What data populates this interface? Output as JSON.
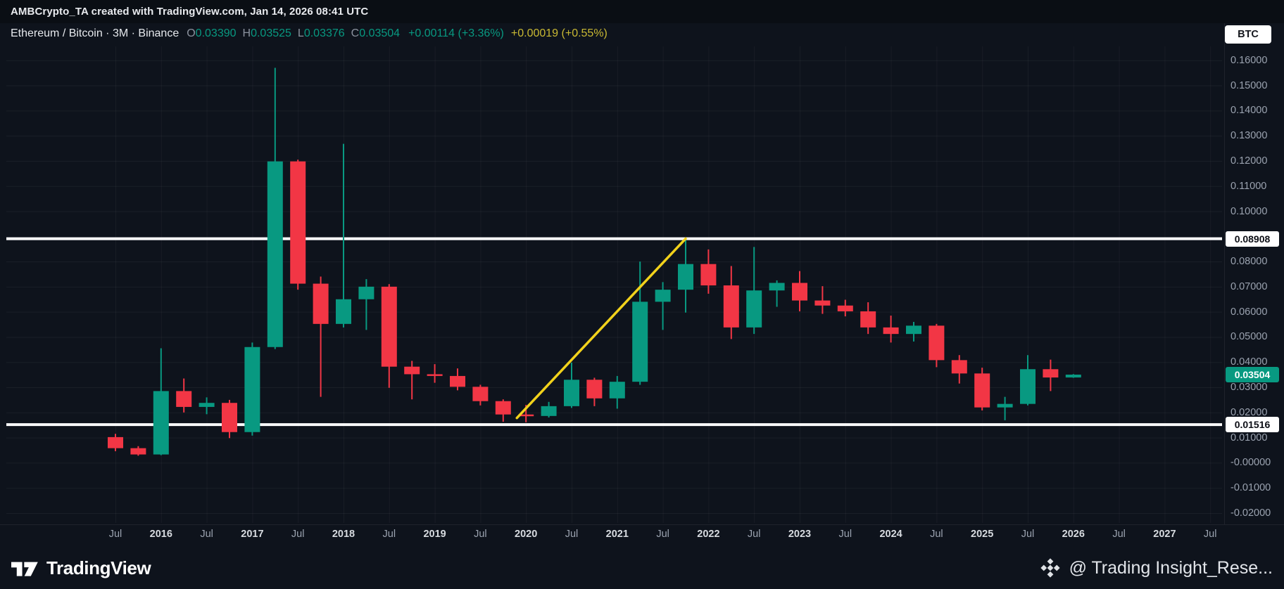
{
  "top_bar": {
    "text": "AMBCrypto_TA created with TradingView.com, Jan 14, 2026 08:41 UTC"
  },
  "legend": {
    "title": "Ethereum / Bitcoin · 3M · Binance",
    "ohlc": [
      {
        "label": "O",
        "value": "0.03390"
      },
      {
        "label": "H",
        "value": "0.03525"
      },
      {
        "label": "L",
        "value": "0.03376"
      },
      {
        "label": "C",
        "value": "0.03504"
      }
    ],
    "change_primary": "+0.00114 (+3.36%)",
    "change_secondary": "+0.00019 (+0.55%)"
  },
  "currency_button": {
    "label": "BTC"
  },
  "footer": {
    "brand": "TradingView",
    "watermark": "@ Trading Insight_Rese..."
  },
  "colors": {
    "bg": "#0e131c",
    "topbar_bg": "#0a0e14",
    "up": "#089981",
    "down": "#f23645",
    "trendline": "#f2d21b",
    "level_line": "#ffffff",
    "axis_text": "#9ba3b0",
    "axis_text_major": "#d7dbe0",
    "change_secondary": "#c9b933"
  },
  "chart_data": {
    "type": "candlestick",
    "title": "Ethereum / Bitcoin · 3M · Binance",
    "symbol": "ETH/BTC",
    "exchange": "Binance",
    "timeframe": "3M",
    "quote_currency": "BTC",
    "ylim": [
      -0.02,
      0.16
    ],
    "grid": true,
    "y_ticks": [
      {
        "label": "0.16000",
        "value": 0.16
      },
      {
        "label": "0.15000",
        "value": 0.15
      },
      {
        "label": "0.14000",
        "value": 0.14
      },
      {
        "label": "0.13000",
        "value": 0.13
      },
      {
        "label": "0.12000",
        "value": 0.12
      },
      {
        "label": "0.11000",
        "value": 0.11
      },
      {
        "label": "0.10000",
        "value": 0.1
      },
      {
        "label": "0.08000",
        "value": 0.08
      },
      {
        "label": "0.07000",
        "value": 0.07
      },
      {
        "label": "0.06000",
        "value": 0.06
      },
      {
        "label": "0.05000",
        "value": 0.05
      },
      {
        "label": "0.04000",
        "value": 0.04
      },
      {
        "label": "0.03000",
        "value": 0.03
      },
      {
        "label": "0.02000",
        "value": 0.02
      },
      {
        "label": "0.01000",
        "value": 0.01
      },
      {
        "label": "-0.00000",
        "value": 0.0
      },
      {
        "label": "-0.01000",
        "value": -0.01
      },
      {
        "label": "-0.02000",
        "value": -0.02
      }
    ],
    "x_ticks": [
      {
        "i": 0,
        "label": "Jul",
        "major": false
      },
      {
        "i": 2,
        "label": "2016",
        "major": true
      },
      {
        "i": 4,
        "label": "Jul",
        "major": false
      },
      {
        "i": 6,
        "label": "2017",
        "major": true
      },
      {
        "i": 8,
        "label": "Jul",
        "major": false
      },
      {
        "i": 10,
        "label": "2018",
        "major": true
      },
      {
        "i": 12,
        "label": "Jul",
        "major": false
      },
      {
        "i": 14,
        "label": "2019",
        "major": true
      },
      {
        "i": 16,
        "label": "Jul",
        "major": false
      },
      {
        "i": 18,
        "label": "2020",
        "major": true
      },
      {
        "i": 20,
        "label": "Jul",
        "major": false
      },
      {
        "i": 22,
        "label": "2021",
        "major": true
      },
      {
        "i": 24,
        "label": "Jul",
        "major": false
      },
      {
        "i": 26,
        "label": "2022",
        "major": true
      },
      {
        "i": 28,
        "label": "Jul",
        "major": false
      },
      {
        "i": 30,
        "label": "2023",
        "major": true
      },
      {
        "i": 32,
        "label": "Jul",
        "major": false
      },
      {
        "i": 34,
        "label": "2024",
        "major": true
      },
      {
        "i": 36,
        "label": "Jul",
        "major": false
      },
      {
        "i": 38,
        "label": "2025",
        "major": true
      },
      {
        "i": 40,
        "label": "Jul",
        "major": false
      },
      {
        "i": 42,
        "label": "2026",
        "major": true
      },
      {
        "i": 44,
        "label": "Jul",
        "major": false
      },
      {
        "i": 46,
        "label": "2027",
        "major": true
      },
      {
        "i": 48,
        "label": "Jul",
        "major": false
      }
    ],
    "price_lines": [
      {
        "price": 0.08908,
        "label": "0.08908"
      },
      {
        "price": 0.01516,
        "label": "0.01516"
      }
    ],
    "last_price": {
      "price": 0.03504,
      "label": "0.03504"
    },
    "trendline": {
      "from_index": 17.6,
      "from_price": 0.0178,
      "to_index": 25,
      "to_price": 0.0891
    },
    "candles": [
      {
        "t": "2015-07",
        "o": 0.0102,
        "h": 0.0115,
        "l": 0.0046,
        "c": 0.0058
      },
      {
        "t": "2015-10",
        "o": 0.0058,
        "h": 0.0066,
        "l": 0.0028,
        "c": 0.0033
      },
      {
        "t": "2016-01",
        "o": 0.0033,
        "h": 0.0455,
        "l": 0.003,
        "c": 0.0285
      },
      {
        "t": "2016-04",
        "o": 0.0285,
        "h": 0.0335,
        "l": 0.02,
        "c": 0.0222
      },
      {
        "t": "2016-07",
        "o": 0.0222,
        "h": 0.026,
        "l": 0.0193,
        "c": 0.0238
      },
      {
        "t": "2016-10",
        "o": 0.0238,
        "h": 0.025,
        "l": 0.0098,
        "c": 0.0122
      },
      {
        "t": "2017-01",
        "o": 0.0122,
        "h": 0.0478,
        "l": 0.0108,
        "c": 0.046
      },
      {
        "t": "2017-04",
        "o": 0.046,
        "h": 0.157,
        "l": 0.0452,
        "c": 0.1198
      },
      {
        "t": "2017-07",
        "o": 0.1198,
        "h": 0.1205,
        "l": 0.0688,
        "c": 0.0712
      },
      {
        "t": "2017-10",
        "o": 0.0712,
        "h": 0.074,
        "l": 0.0262,
        "c": 0.0552
      },
      {
        "t": "2018-01",
        "o": 0.0552,
        "h": 0.1268,
        "l": 0.0538,
        "c": 0.065
      },
      {
        "t": "2018-04",
        "o": 0.065,
        "h": 0.073,
        "l": 0.0528,
        "c": 0.07
      },
      {
        "t": "2018-07",
        "o": 0.07,
        "h": 0.071,
        "l": 0.0298,
        "c": 0.0382
      },
      {
        "t": "2018-10",
        "o": 0.0382,
        "h": 0.0405,
        "l": 0.0252,
        "c": 0.0352
      },
      {
        "t": "2019-01",
        "o": 0.0352,
        "h": 0.0392,
        "l": 0.0318,
        "c": 0.0345
      },
      {
        "t": "2019-04",
        "o": 0.0345,
        "h": 0.0375,
        "l": 0.0288,
        "c": 0.0302
      },
      {
        "t": "2019-07",
        "o": 0.0302,
        "h": 0.031,
        "l": 0.0228,
        "c": 0.0245
      },
      {
        "t": "2019-10",
        "o": 0.0245,
        "h": 0.0252,
        "l": 0.0163,
        "c": 0.0192
      },
      {
        "t": "2020-01",
        "o": 0.0192,
        "h": 0.023,
        "l": 0.0161,
        "c": 0.0186
      },
      {
        "t": "2020-04",
        "o": 0.0186,
        "h": 0.0242,
        "l": 0.018,
        "c": 0.0225
      },
      {
        "t": "2020-07",
        "o": 0.0225,
        "h": 0.0398,
        "l": 0.0218,
        "c": 0.033
      },
      {
        "t": "2020-10",
        "o": 0.033,
        "h": 0.0338,
        "l": 0.0225,
        "c": 0.0256
      },
      {
        "t": "2021-01",
        "o": 0.0256,
        "h": 0.0345,
        "l": 0.0215,
        "c": 0.0322
      },
      {
        "t": "2021-04",
        "o": 0.0322,
        "h": 0.08,
        "l": 0.031,
        "c": 0.064
      },
      {
        "t": "2021-07",
        "o": 0.064,
        "h": 0.0718,
        "l": 0.0528,
        "c": 0.0688
      },
      {
        "t": "2021-10",
        "o": 0.0688,
        "h": 0.0891,
        "l": 0.0597,
        "c": 0.079
      },
      {
        "t": "2022-01",
        "o": 0.079,
        "h": 0.0848,
        "l": 0.0672,
        "c": 0.0705
      },
      {
        "t": "2022-04",
        "o": 0.0705,
        "h": 0.0782,
        "l": 0.0492,
        "c": 0.0538
      },
      {
        "t": "2022-07",
        "o": 0.0538,
        "h": 0.0858,
        "l": 0.0512,
        "c": 0.0685
      },
      {
        "t": "2022-10",
        "o": 0.0685,
        "h": 0.0725,
        "l": 0.062,
        "c": 0.0715
      },
      {
        "t": "2023-01",
        "o": 0.0715,
        "h": 0.0762,
        "l": 0.0602,
        "c": 0.0645
      },
      {
        "t": "2023-04",
        "o": 0.0645,
        "h": 0.0702,
        "l": 0.0592,
        "c": 0.0625
      },
      {
        "t": "2023-07",
        "o": 0.0625,
        "h": 0.0648,
        "l": 0.0582,
        "c": 0.0602
      },
      {
        "t": "2023-10",
        "o": 0.0602,
        "h": 0.0638,
        "l": 0.0512,
        "c": 0.0538
      },
      {
        "t": "2024-01",
        "o": 0.0538,
        "h": 0.0585,
        "l": 0.0478,
        "c": 0.0512
      },
      {
        "t": "2024-04",
        "o": 0.0512,
        "h": 0.056,
        "l": 0.0482,
        "c": 0.0545
      },
      {
        "t": "2024-07",
        "o": 0.0545,
        "h": 0.0552,
        "l": 0.038,
        "c": 0.0408
      },
      {
        "t": "2024-10",
        "o": 0.0408,
        "h": 0.0428,
        "l": 0.0315,
        "c": 0.0355
      },
      {
        "t": "2025-01",
        "o": 0.0355,
        "h": 0.0378,
        "l": 0.0208,
        "c": 0.022
      },
      {
        "t": "2025-04",
        "o": 0.022,
        "h": 0.0262,
        "l": 0.0169,
        "c": 0.0234
      },
      {
        "t": "2025-07",
        "o": 0.0234,
        "h": 0.0428,
        "l": 0.0228,
        "c": 0.0372
      },
      {
        "t": "2025-10",
        "o": 0.0372,
        "h": 0.041,
        "l": 0.0285,
        "c": 0.0339
      },
      {
        "t": "2026-01",
        "o": 0.0339,
        "h": 0.03525,
        "l": 0.03376,
        "c": 0.03504
      }
    ]
  }
}
